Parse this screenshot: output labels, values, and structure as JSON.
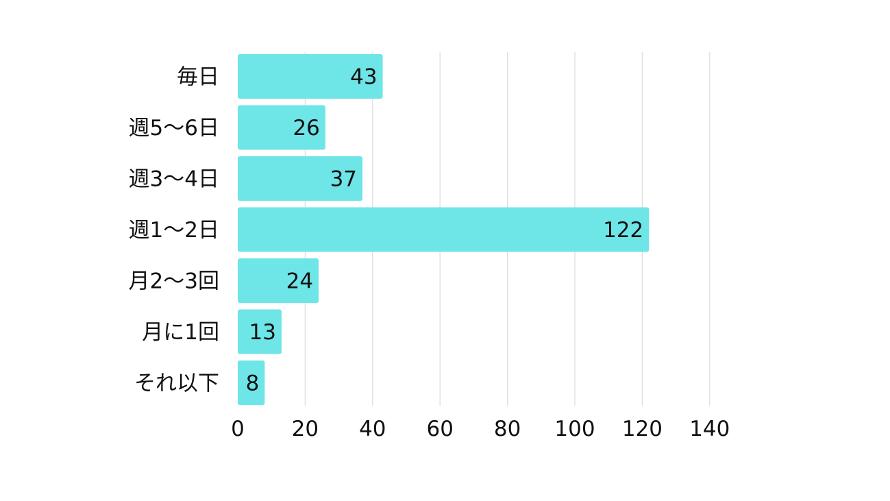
{
  "chart_data": {
    "type": "bar",
    "orientation": "horizontal",
    "categories": [
      "毎日",
      "週5〜6日",
      "週3〜4日",
      "週1〜2日",
      "月2〜3回",
      "月に1回",
      "それ以下"
    ],
    "values": [
      43,
      26,
      37,
      122,
      24,
      13,
      8
    ],
    "x_ticks": [
      "0",
      "20",
      "40",
      "60",
      "80",
      "100",
      "120",
      "140"
    ],
    "xlim": [
      0,
      140
    ],
    "title": "",
    "xlabel": "",
    "ylabel": "",
    "grid": "vertical",
    "legend": "none",
    "data_labels": "inside-end",
    "bar_color": "#6ee5e7",
    "grid_color": "#dddddd",
    "text_color": "#111111"
  }
}
